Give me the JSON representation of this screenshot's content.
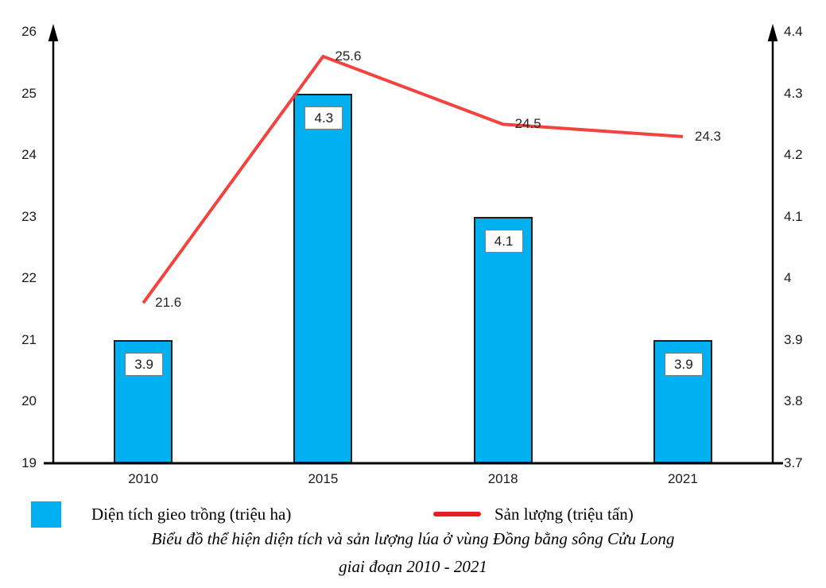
{
  "chart_data": {
    "type": "bar",
    "combo": "bar+line dual axis",
    "categories": [
      "2010",
      "2015",
      "2018",
      "2021"
    ],
    "series": [
      {
        "name": "Diện tích gieo trồng (triệu ha)",
        "type": "bar",
        "axis": "right",
        "color": "#00B0F0",
        "border_color": "#1f1f1f",
        "values": [
          3.9,
          4.3,
          4.1,
          3.9
        ],
        "value_labels": [
          "3.9",
          "4.3",
          "4.1",
          "3.9"
        ]
      },
      {
        "name": "Sản lượng (triệu tấn)",
        "type": "line",
        "axis": "left",
        "color": "#F4423F",
        "values": [
          21.6,
          25.6,
          24.5,
          24.3
        ],
        "value_labels": [
          "21.6",
          "25.6",
          "24.5",
          "24.3"
        ]
      }
    ],
    "left_axis": {
      "min": 19,
      "max": 26,
      "step": 1,
      "ticks": [
        "19",
        "20",
        "21",
        "22",
        "23",
        "24",
        "25",
        "26"
      ]
    },
    "right_axis": {
      "min": 3.7,
      "max": 4.4,
      "step": 0.1,
      "ticks": [
        "3.7",
        "3.8",
        "3.9",
        "4",
        "4.1",
        "4.2",
        "4.3",
        "4.4"
      ]
    },
    "grid": false,
    "legend_position": "bottom",
    "axis_color": "#000000",
    "title_line1": "Biểu đồ thể hiện diện tích và sản lượng lúa ở vùng Đồng bằng sông Cửu Long",
    "title_line2": "giai đoạn 2010 - 2021",
    "title": "Biểu đồ thể hiện diện tích và sản lượng lúa ở vùng Đồng bằng sông Cửu Long giai đoạn 2010 - 2021"
  }
}
